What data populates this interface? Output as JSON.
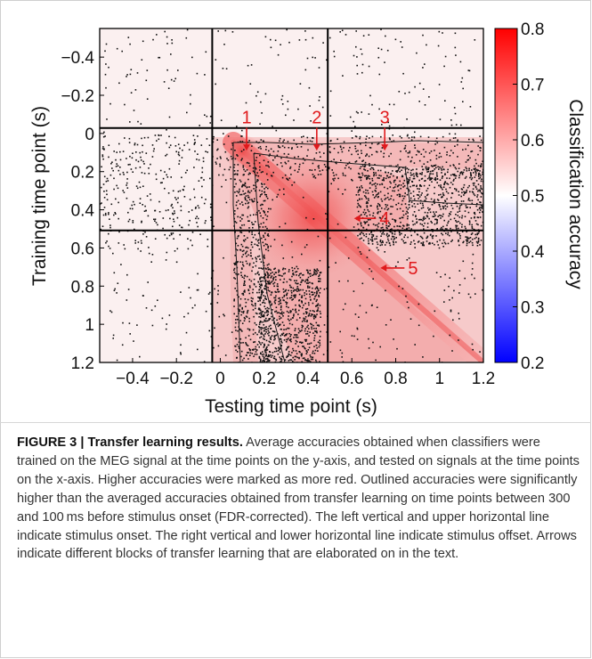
{
  "chart_data": {
    "type": "heatmap",
    "xlabel": "Testing time point (s)",
    "ylabel": "Training time point (s)",
    "colorbar_label": "Classification accuracy",
    "xlim": [
      -0.55,
      1.2
    ],
    "ylim": [
      -0.55,
      1.2
    ],
    "y_inverted": true,
    "x_ticks": [
      {
        "value": -0.4,
        "label": "−0.4"
      },
      {
        "value": -0.2,
        "label": "−0.2"
      },
      {
        "value": 0,
        "label": "0"
      },
      {
        "value": 0.2,
        "label": "0.2"
      },
      {
        "value": 0.4,
        "label": "0.4"
      },
      {
        "value": 0.6,
        "label": "0.6"
      },
      {
        "value": 0.8,
        "label": "0.8"
      },
      {
        "value": 1,
        "label": "1"
      },
      {
        "value": 1.2,
        "label": "1.2"
      }
    ],
    "y_ticks": [
      {
        "value": -0.4,
        "label": "−0.4"
      },
      {
        "value": -0.2,
        "label": "−0.2"
      },
      {
        "value": 0,
        "label": "0"
      },
      {
        "value": 0.2,
        "label": "0.2"
      },
      {
        "value": 0.4,
        "label": "0.4"
      },
      {
        "value": 0.6,
        "label": "0.6"
      },
      {
        "value": 0.8,
        "label": "0.8"
      },
      {
        "value": 1,
        "label": "1"
      },
      {
        "value": 1.2,
        "label": "1.2"
      }
    ],
    "colorbar_range": [
      0.2,
      0.8
    ],
    "colorbar_ticks": [
      {
        "value": 0.8,
        "label": "0.8"
      },
      {
        "value": 0.7,
        "label": "0.7"
      },
      {
        "value": 0.6,
        "label": "0.6"
      },
      {
        "value": 0.5,
        "label": "0.5"
      },
      {
        "value": 0.4,
        "label": "0.4"
      },
      {
        "value": 0.3,
        "label": "0.3"
      },
      {
        "value": 0.2,
        "label": "0.2"
      }
    ],
    "colormap": {
      "low": "#0000ff",
      "mid": "#ffffff",
      "high": "#ff0000"
    },
    "reference_lines": {
      "stimulus_onset": 0,
      "stimulus_offset": 0.52
    },
    "accuracy_pattern": {
      "baseline": 0.5,
      "diagonal_peak": 0.72,
      "block_peak": {
        "train": 0.48,
        "test": 0.48,
        "accuracy": 0.73
      },
      "post_onset_plateau": 0.55
    },
    "annotations": [
      {
        "label": "1",
        "kind": "arrow-down",
        "x": 0.12,
        "y_from": -0.03,
        "y_to": 0.09
      },
      {
        "label": "2",
        "kind": "arrow-down",
        "x": 0.44,
        "y_from": -0.03,
        "y_to": 0.09
      },
      {
        "label": "3",
        "kind": "arrow-down",
        "x": 0.75,
        "y_from": -0.03,
        "y_to": 0.09
      },
      {
        "label": "4",
        "kind": "arrow-left",
        "y": 0.445,
        "x_from": 0.71,
        "x_to": 0.61
      },
      {
        "label": "5",
        "kind": "arrow-left",
        "y": 0.705,
        "x_from": 0.84,
        "x_to": 0.73
      }
    ]
  },
  "caption": {
    "title": "FIGURE 3 | Transfer learning results.",
    "body": " Average accuracies obtained when classifiers were trained on the MEG signal at the time points on the y-axis, and tested on signals at the time points on the x-axis. Higher accuracies were marked as more red. Outlined accuracies were significantly higher than the averaged accuracies obtained from transfer learning on time points between 300 and 100 ms before stimulus onset (FDR-corrected). The left vertical and upper horizontal line indicate stimulus onset. The right vertical and lower horizontal line indicate stimulus offset. Arrows indicate different blocks of transfer learning that are elaborated on in the text."
  }
}
